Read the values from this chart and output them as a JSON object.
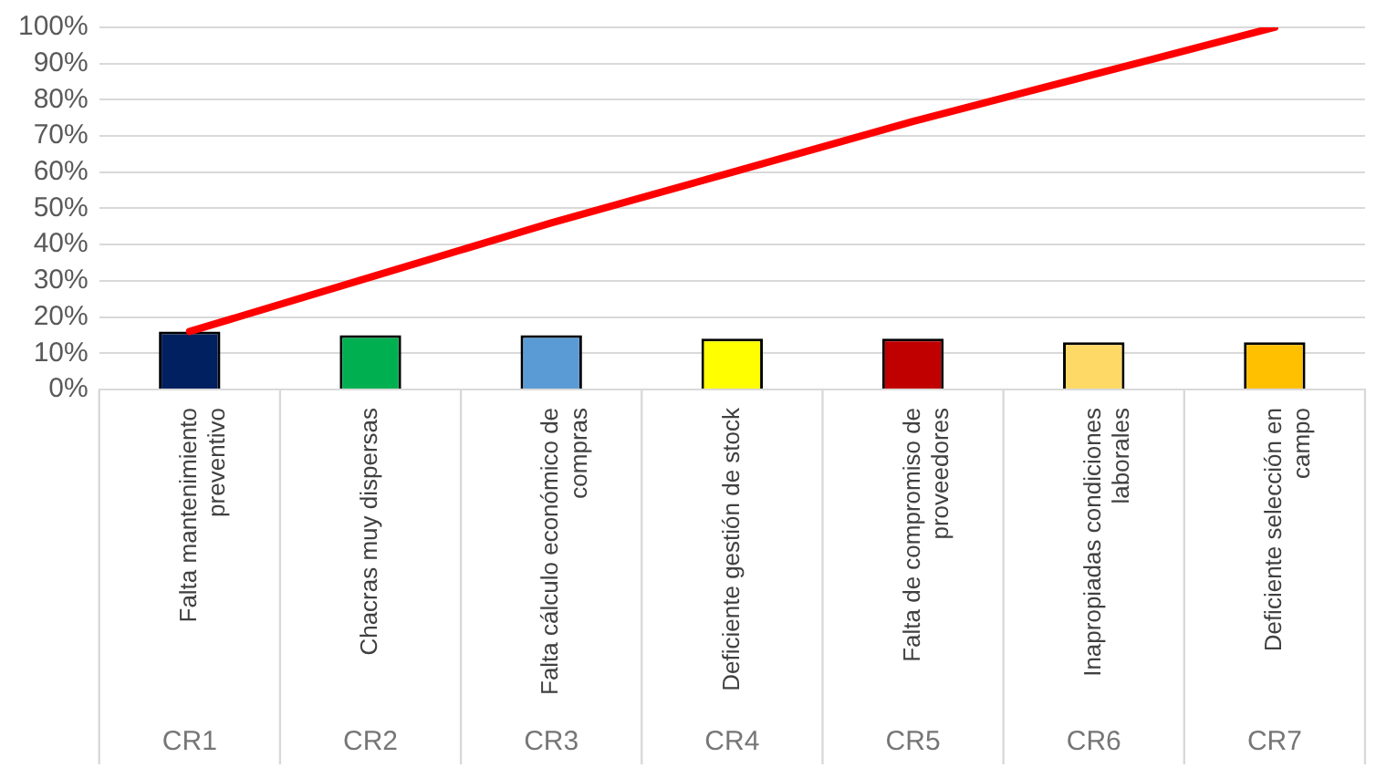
{
  "chart_data": {
    "type": "bar",
    "categories": [
      "Falta mantenimiento preventivo",
      "Chacras muy dispersas",
      "Falta cálculo económico de compras",
      "Deficiente gestión de stock",
      "Falta de compromiso de proveedores",
      "Inapropiadas condiciones laborales",
      "Deficiente selección en campo"
    ],
    "series": [
      {
        "colors": [
          "#002060",
          "#00b050",
          "#5b9bd5",
          "#ffff00",
          "#c00000",
          "#ffd966",
          "#ffc000"
        ],
        "values": [
          16,
          15,
          15,
          14,
          14,
          13,
          13
        ]
      },
      {
        "type": "line",
        "color": "#ff0000",
        "values": [
          16,
          31,
          46,
          60,
          74,
          87,
          100
        ]
      }
    ],
    "ylim": [
      0,
      100
    ],
    "yticks": [
      {
        "value": 0,
        "label": "0%"
      },
      {
        "value": 10,
        "label": "10%"
      },
      {
        "value": 20,
        "label": "20%"
      },
      {
        "value": 30,
        "label": "30%"
      },
      {
        "value": 40,
        "label": "40%"
      },
      {
        "value": 50,
        "label": "50%"
      },
      {
        "value": 60,
        "label": "60%"
      },
      {
        "value": 70,
        "label": "70%"
      },
      {
        "value": 80,
        "label": "80%"
      },
      {
        "value": 90,
        "label": "90%"
      },
      {
        "value": 100,
        "label": "100%"
      }
    ],
    "grid": "y",
    "marker": "none",
    "annotations": [
      "CR1",
      "CR2",
      "CR3",
      "CR4",
      "CR5",
      "CR6",
      "CR7"
    ]
  }
}
